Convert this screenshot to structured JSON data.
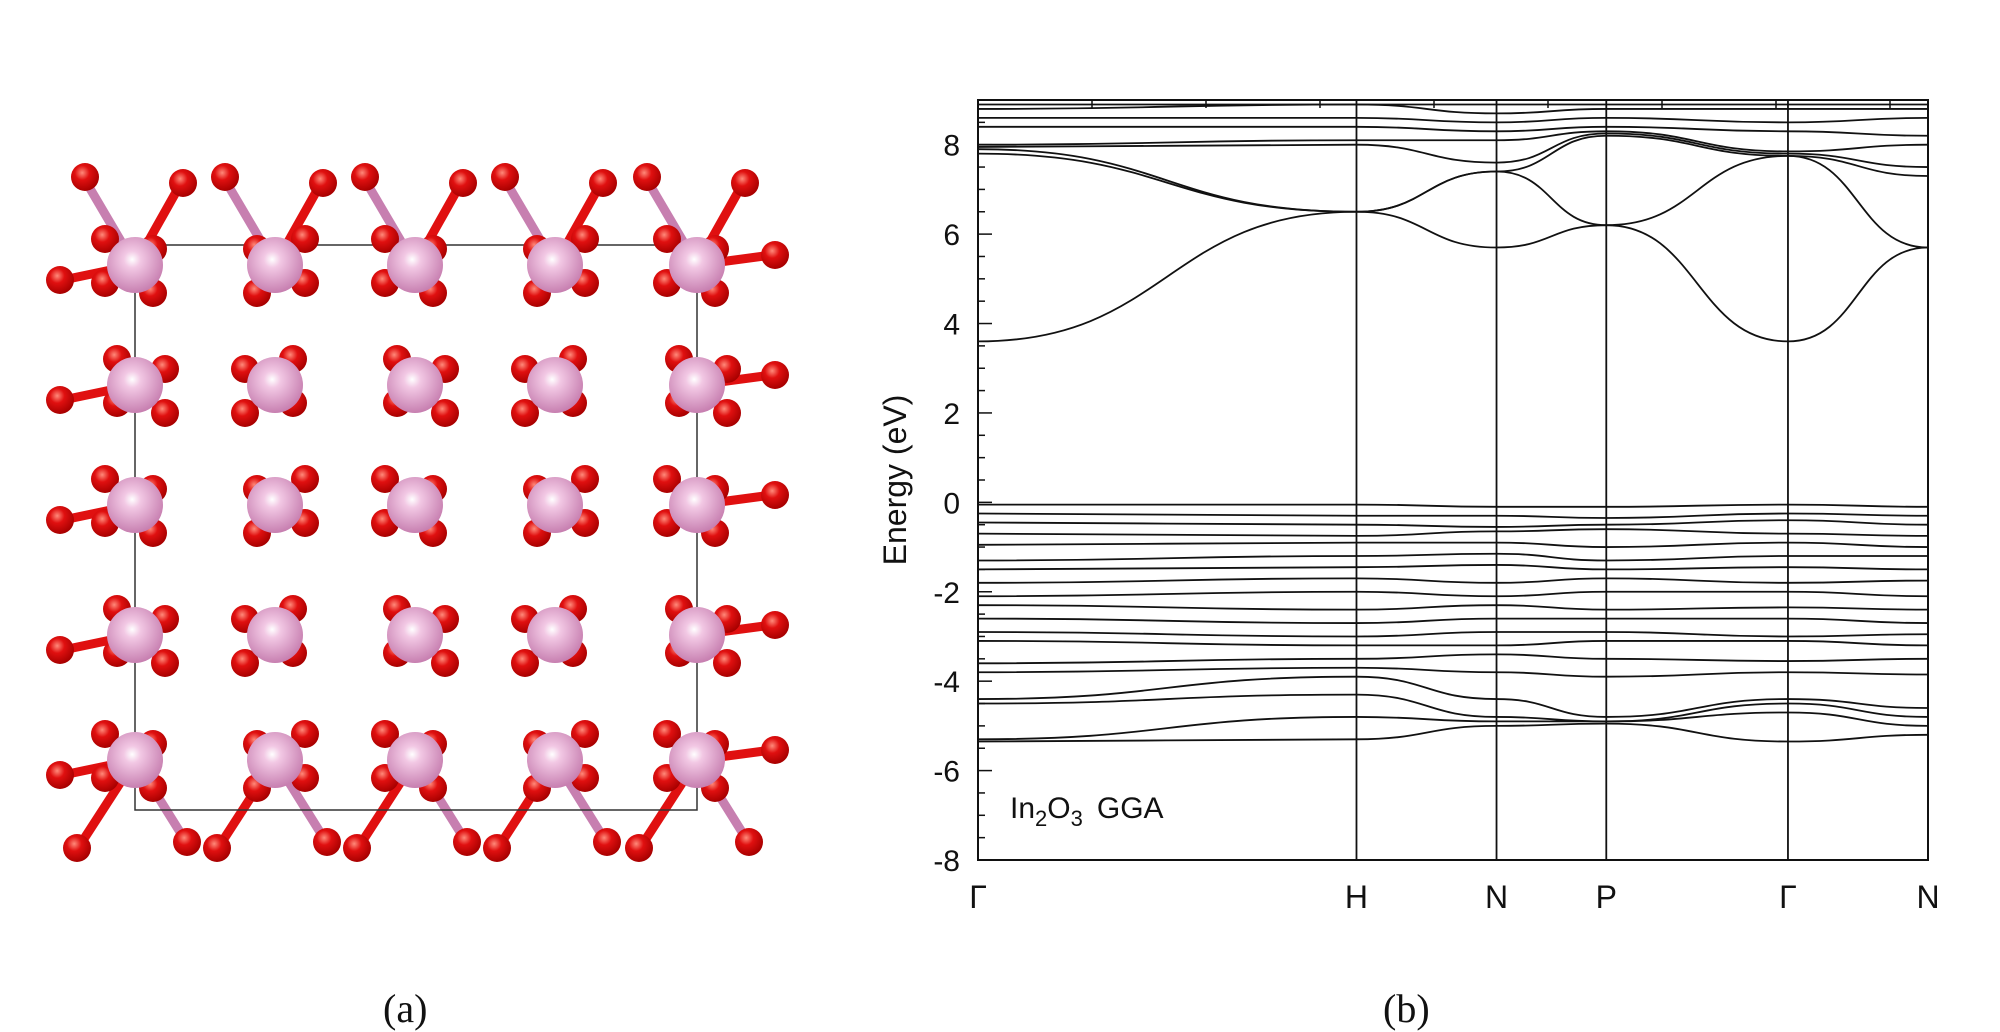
{
  "captions": {
    "a": "(a)",
    "b": "(b)"
  },
  "structure": {
    "atoms": [
      {
        "element": "In",
        "color": "#c77fb0"
      },
      {
        "element": "O",
        "color": "#e01010"
      }
    ],
    "bond_color": "#c77fb0",
    "cell_outline_color": "#333333"
  },
  "chart_data": {
    "type": "line",
    "title": "",
    "annotation": {
      "text_parts": [
        "In",
        "2",
        "O",
        "3",
        "  GGA"
      ]
    },
    "xlabel": "",
    "ylabel": "Energy (eV)",
    "ylim": [
      -8,
      9
    ],
    "y_ticks": [
      -8,
      -6,
      -4,
      -2,
      0,
      2,
      4,
      6,
      8
    ],
    "x_ticks": [
      "Γ",
      "H",
      "N",
      "P",
      "Γ",
      "N"
    ],
    "x_tick_positions": [
      0,
      1,
      1.37,
      1.66,
      2.14,
      2.51
    ],
    "line_color": "#111111",
    "conduction_bands": [
      {
        "name": "",
        "values": [
          3.6,
          6.5,
          5.7,
          6.2,
          3.6,
          5.7
        ]
      },
      {
        "name": "",
        "values": [
          7.8,
          6.5,
          7.4,
          6.2,
          7.75,
          5.7
        ]
      },
      {
        "name": "",
        "values": [
          7.9,
          6.5,
          7.4,
          8.2,
          7.75,
          7.3
        ]
      },
      {
        "name": "",
        "values": [
          7.95,
          8.0,
          7.6,
          8.25,
          7.8,
          7.5
        ]
      },
      {
        "name": "",
        "values": [
          8.0,
          8.1,
          8.1,
          8.3,
          7.85,
          8.0
        ]
      },
      {
        "name": "",
        "values": [
          8.4,
          8.4,
          8.3,
          8.4,
          8.3,
          8.2
        ]
      },
      {
        "name": "",
        "values": [
          8.6,
          8.6,
          8.5,
          8.6,
          8.5,
          8.6
        ]
      },
      {
        "name": "",
        "values": [
          8.8,
          8.9,
          8.7,
          8.8,
          8.8,
          8.8
        ]
      },
      {
        "name": "",
        "values": [
          8.9,
          8.9,
          8.9,
          8.9,
          8.9,
          8.9
        ]
      }
    ],
    "valence_bands": [
      {
        "name": "",
        "values": [
          -0.05,
          -0.05,
          -0.1,
          -0.1,
          -0.05,
          -0.1
        ]
      },
      {
        "name": "",
        "values": [
          -0.25,
          -0.3,
          -0.3,
          -0.35,
          -0.25,
          -0.3
        ]
      },
      {
        "name": "",
        "values": [
          -0.45,
          -0.5,
          -0.55,
          -0.5,
          -0.4,
          -0.5
        ]
      },
      {
        "name": "",
        "values": [
          -0.7,
          -0.75,
          -0.65,
          -0.6,
          -0.7,
          -0.75
        ]
      },
      {
        "name": "",
        "values": [
          -0.95,
          -0.9,
          -0.9,
          -1.0,
          -0.9,
          -1.0
        ]
      },
      {
        "name": "",
        "values": [
          -1.3,
          -1.2,
          -1.15,
          -1.3,
          -1.2,
          -1.2
        ]
      },
      {
        "name": "",
        "values": [
          -1.5,
          -1.45,
          -1.4,
          -1.5,
          -1.45,
          -1.5
        ]
      },
      {
        "name": "",
        "values": [
          -1.8,
          -1.7,
          -1.8,
          -1.7,
          -1.8,
          -1.75
        ]
      },
      {
        "name": "",
        "values": [
          -2.1,
          -2.0,
          -2.1,
          -2.0,
          -2.0,
          -2.1
        ]
      },
      {
        "name": "",
        "values": [
          -2.3,
          -2.4,
          -2.3,
          -2.4,
          -2.35,
          -2.4
        ]
      },
      {
        "name": "",
        "values": [
          -2.6,
          -2.7,
          -2.6,
          -2.6,
          -2.6,
          -2.7
        ]
      },
      {
        "name": "",
        "values": [
          -2.9,
          -3.0,
          -2.9,
          -2.9,
          -3.0,
          -2.95
        ]
      },
      {
        "name": "",
        "values": [
          -3.1,
          -3.2,
          -3.2,
          -3.1,
          -3.1,
          -3.2
        ]
      },
      {
        "name": "",
        "values": [
          -3.6,
          -3.5,
          -3.4,
          -3.5,
          -3.55,
          -3.5
        ]
      },
      {
        "name": "",
        "values": [
          -3.8,
          -3.7,
          -3.8,
          -3.9,
          -3.8,
          -3.85
        ]
      },
      {
        "name": "",
        "values": [
          -4.4,
          -3.9,
          -4.4,
          -4.8,
          -4.4,
          -4.6
        ]
      },
      {
        "name": "",
        "values": [
          -4.5,
          -4.3,
          -4.8,
          -4.9,
          -4.5,
          -4.8
        ]
      },
      {
        "name": "",
        "values": [
          -5.3,
          -4.8,
          -4.9,
          -4.9,
          -4.7,
          -5.0
        ]
      },
      {
        "name": "",
        "values": [
          -5.35,
          -5.3,
          -5.0,
          -4.95,
          -5.35,
          -5.2
        ]
      }
    ]
  }
}
